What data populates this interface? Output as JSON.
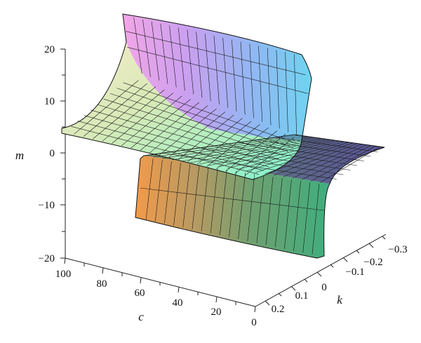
{
  "chart_data": {
    "type": "surface3d",
    "title": "",
    "axes": {
      "m": {
        "label": "m",
        "range": [
          -20,
          20
        ],
        "ticks": [
          "20",
          "10",
          "0",
          "-10",
          "-20"
        ]
      },
      "c": {
        "label": "c",
        "range": [
          0,
          100
        ],
        "ticks": [
          "100",
          "80",
          "60",
          "40",
          "20",
          "0"
        ]
      },
      "k": {
        "label": "k",
        "range": [
          -0.3,
          0.2
        ],
        "ticks": [
          "0.2",
          "0.1",
          "0",
          "−0.1",
          "−0.2",
          "−0.3"
        ]
      }
    },
    "surface": {
      "description_values": "m(c,k) with pole near k = 0; m ≈ +20 approaching k = 0 from positive side, ≈ −20 from negative side",
      "upper_sheet_level": 4,
      "lower_sheet_level": 2,
      "clip": [
        -20,
        20
      ]
    }
  },
  "labels": {
    "m_ticks": [
      "20",
      "10",
      "0",
      "−10",
      "−20"
    ],
    "c_ticks": [
      "100",
      "80",
      "60",
      "40",
      "20",
      "0"
    ],
    "k_ticks": [
      "0.2",
      "0.1",
      "0",
      "−0.1",
      "−0.2",
      "−0.3"
    ],
    "m_title": "m",
    "c_title": "c",
    "k_title": "k"
  }
}
